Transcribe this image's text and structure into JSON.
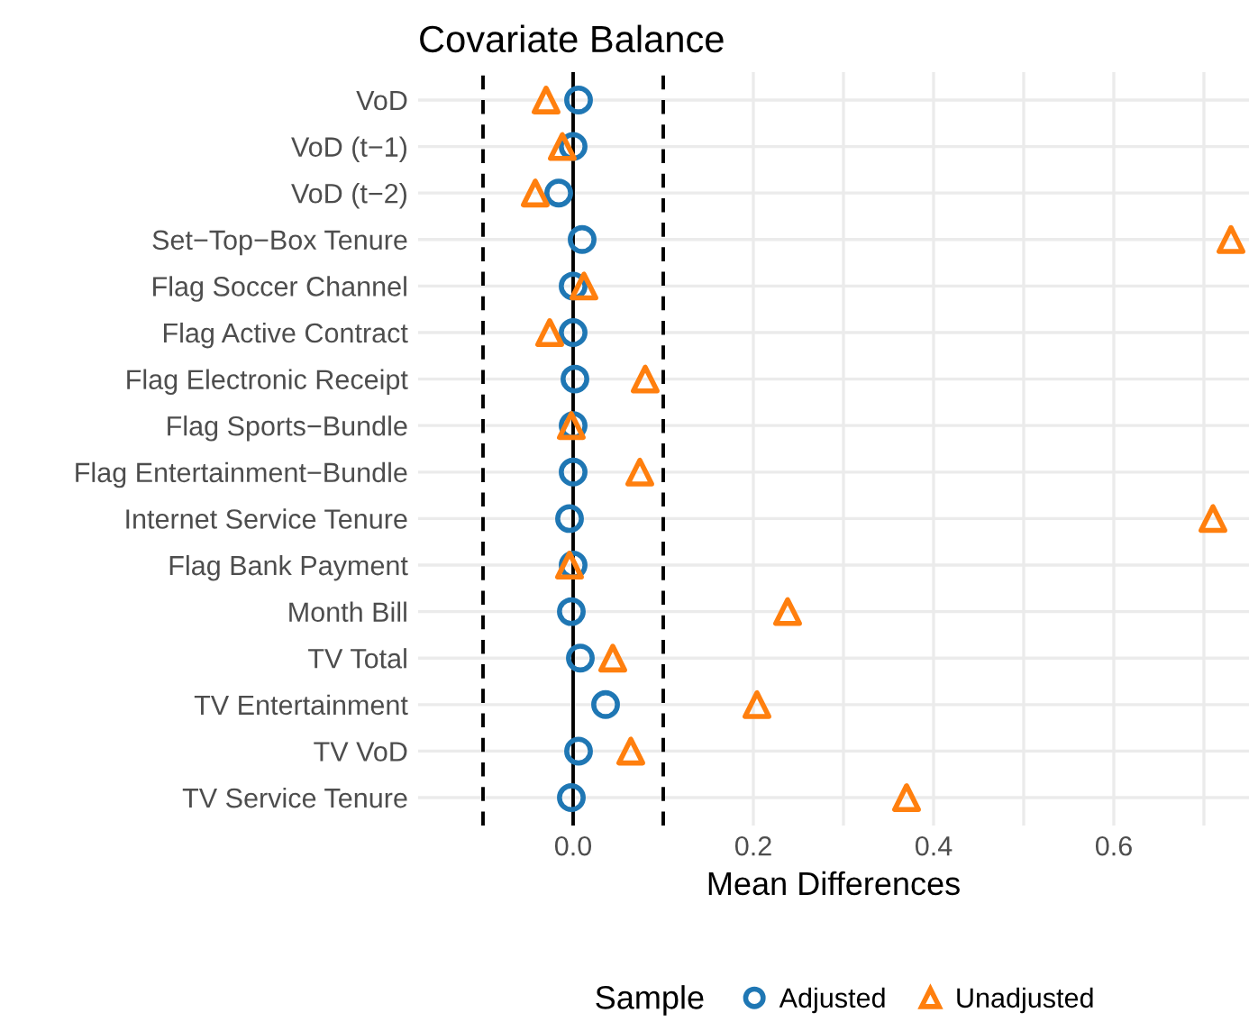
{
  "chart_data": {
    "type": "scatter",
    "title": "Covariate Balance",
    "xlabel": "Mean Differences",
    "legend_title": "Sample",
    "categories": [
      "VoD",
      "VoD (t−1)",
      "VoD (t−2)",
      "Set−Top−Box Tenure",
      "Flag Soccer Channel",
      "Flag Active Contract",
      "Flag Electronic Receipt",
      "Flag Sports−Bundle",
      "Flag Entertainment−Bundle",
      "Internet Service Tenure",
      "Flag Bank Payment",
      "Month Bill",
      "TV Total",
      "TV Entertainment",
      "TV VoD",
      "TV Service Tenure"
    ],
    "series": [
      {
        "name": "Adjusted",
        "color": "#1f77b4",
        "marker": "circle",
        "values": [
          0.006,
          0.0,
          -0.016,
          0.01,
          0.0,
          0.0,
          0.002,
          0.0,
          0.0,
          -0.004,
          0.0,
          -0.002,
          0.008,
          0.036,
          0.006,
          -0.002
        ]
      },
      {
        "name": "Unadjusted",
        "color": "#ff7f0e",
        "marker": "triangle",
        "values": [
          -0.03,
          -0.012,
          -0.042,
          0.73,
          0.012,
          -0.026,
          0.08,
          -0.002,
          0.074,
          0.71,
          -0.004,
          0.238,
          0.044,
          0.204,
          0.064,
          0.37
        ]
      }
    ],
    "orientation": "horizontal",
    "xlim": [
      -0.172,
      0.75
    ],
    "xticks": [
      {
        "value": 0,
        "label": "0.0"
      },
      {
        "value": 0.2,
        "label": "0.2"
      },
      {
        "value": 0.3,
        "label": null
      },
      {
        "value": 0.4,
        "label": "0.4"
      },
      {
        "value": 0.5,
        "label": null
      },
      {
        "value": 0.6,
        "label": "0.6"
      },
      {
        "value": 0.7,
        "label": null
      }
    ],
    "ref_lines": [
      {
        "axis": "x",
        "value": -0.1,
        "line_style": "dashed",
        "color": "#000000"
      },
      {
        "axis": "x",
        "value": 0.1,
        "line_style": "dashed",
        "color": "#000000"
      },
      {
        "axis": "x",
        "value": 0,
        "line_style": "solid",
        "color": "#000000"
      }
    ],
    "grid": true,
    "legend": "bottom"
  }
}
